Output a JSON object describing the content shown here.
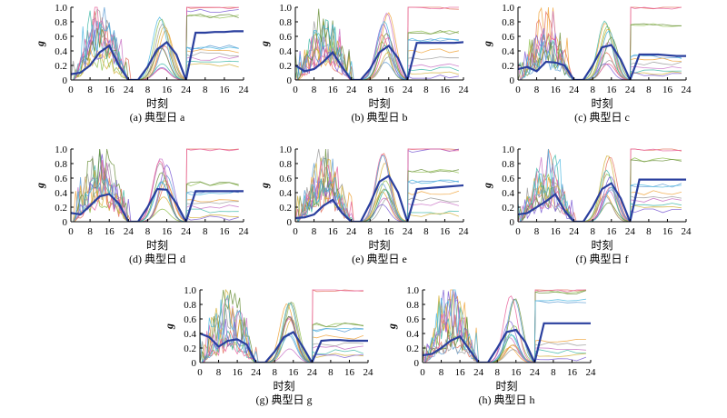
{
  "figure": {
    "xlabel": "时刻",
    "ylabel": "g",
    "x_ticks": [
      "0",
      "8",
      "16",
      "24",
      "8",
      "16",
      "24",
      "8",
      "16",
      "24"
    ],
    "y_ticks": [
      "0",
      "0.2",
      "0.4",
      "0.6",
      "0.8",
      "1.0"
    ]
  },
  "colors": {
    "mean_line": "#2a3f9e",
    "thin_lines": [
      "#e36d5b",
      "#8fbf4e",
      "#5a9bd4",
      "#f0a33a",
      "#9a9a9a",
      "#c870c4",
      "#3fb9a7",
      "#d4b23a",
      "#7a5bd4",
      "#e85f9a",
      "#6a8f3a",
      "#4bb7e0"
    ]
  },
  "chart_data": [
    {
      "type": "line",
      "caption": "(a) 典型日 a",
      "xlim": [
        0,
        72
      ],
      "ylim": [
        0,
        1.0
      ],
      "mean_series": {
        "x": [
          0,
          4,
          8,
          12,
          16,
          20,
          24,
          28,
          32,
          36,
          40,
          44,
          48,
          52,
          56,
          60,
          64,
          68,
          72
        ],
        "y": [
          0.08,
          0.1,
          0.2,
          0.38,
          0.47,
          0.2,
          0,
          0,
          0.18,
          0.42,
          0.52,
          0.35,
          0,
          0.65,
          0.65,
          0.66,
          0.66,
          0.67,
          0.67
        ]
      },
      "day3_levels": [
        1.0,
        0.88,
        0.45,
        0.4,
        0.35,
        0.3,
        0.25,
        0.2,
        0.95
      ]
    },
    {
      "type": "line",
      "caption": "(b) 典型日 b",
      "xlim": [
        0,
        72
      ],
      "ylim": [
        0,
        1.0
      ],
      "mean_series": {
        "x": [
          0,
          4,
          8,
          12,
          16,
          20,
          24,
          28,
          32,
          36,
          40,
          44,
          48,
          52,
          56,
          60,
          64,
          68,
          72
        ],
        "y": [
          0.2,
          0.12,
          0.15,
          0.25,
          0.38,
          0.18,
          0,
          0,
          0.15,
          0.38,
          0.47,
          0.3,
          0,
          0.51,
          0.51,
          0.51,
          0.51,
          0.51,
          0.52
        ]
      },
      "day3_levels": [
        1.0,
        0.65,
        0.55,
        0.4,
        0.3,
        0.2,
        0.15,
        0.1,
        0.05
      ]
    },
    {
      "type": "line",
      "caption": "(c) 典型日 c",
      "xlim": [
        0,
        72
      ],
      "ylim": [
        0,
        1.0
      ],
      "mean_series": {
        "x": [
          0,
          4,
          8,
          12,
          16,
          20,
          24,
          28,
          32,
          36,
          40,
          44,
          48,
          52,
          56,
          60,
          64,
          68,
          72
        ],
        "y": [
          0.15,
          0.18,
          0.12,
          0.25,
          0.24,
          0.2,
          0,
          0,
          0.2,
          0.45,
          0.48,
          0.28,
          0,
          0.35,
          0.35,
          0.35,
          0.34,
          0.33,
          0.33
        ]
      },
      "day3_levels": [
        1.0,
        0.76,
        0.32,
        0.28,
        0.22,
        0.18,
        0.12,
        0.1,
        0.08
      ]
    },
    {
      "type": "line",
      "caption": "(d) 典型日 d",
      "xlim": [
        0,
        72
      ],
      "ylim": [
        0,
        1.0
      ],
      "mean_series": {
        "x": [
          0,
          4,
          8,
          12,
          16,
          20,
          24,
          28,
          32,
          36,
          40,
          44,
          48,
          52,
          56,
          60,
          64,
          68,
          72
        ],
        "y": [
          0.12,
          0.1,
          0.22,
          0.35,
          0.38,
          0.25,
          0,
          0,
          0.2,
          0.45,
          0.44,
          0.25,
          0,
          0.42,
          0.42,
          0.42,
          0.42,
          0.42,
          0.42
        ]
      },
      "day3_levels": [
        1.0,
        0.52,
        0.4,
        0.3,
        0.25,
        0.2,
        0.15,
        0.08,
        0.05
      ]
    },
    {
      "type": "line",
      "caption": "(e) 典型日 e",
      "xlim": [
        0,
        72
      ],
      "ylim": [
        0,
        1.0
      ],
      "mean_series": {
        "x": [
          0,
          4,
          8,
          12,
          16,
          20,
          24,
          28,
          32,
          36,
          40,
          44,
          48,
          52,
          56,
          60,
          64,
          68,
          72
        ],
        "y": [
          0.05,
          0.06,
          0.1,
          0.22,
          0.3,
          0.12,
          0,
          0,
          0.25,
          0.55,
          0.63,
          0.4,
          0,
          0.45,
          0.46,
          0.47,
          0.48,
          0.49,
          0.5
        ]
      },
      "day3_levels": [
        1.0,
        0.7,
        0.55,
        0.4,
        0.3,
        0.25,
        0.12,
        0.1,
        0.98
      ]
    },
    {
      "type": "line",
      "caption": "(f) 典型日 f",
      "xlim": [
        0,
        72
      ],
      "ylim": [
        0,
        1.0
      ],
      "mean_series": {
        "x": [
          0,
          4,
          8,
          12,
          16,
          20,
          24,
          28,
          32,
          36,
          40,
          44,
          48,
          52,
          56,
          60,
          64,
          68,
          72
        ],
        "y": [
          0.1,
          0.12,
          0.2,
          0.28,
          0.38,
          0.15,
          0,
          0,
          0.2,
          0.45,
          0.53,
          0.32,
          0,
          0.58,
          0.58,
          0.58,
          0.58,
          0.58,
          0.58
        ]
      },
      "day3_levels": [
        1.0,
        0.85,
        0.5,
        0.4,
        0.35,
        0.3,
        0.25,
        0.2,
        0.15
      ]
    },
    {
      "type": "line",
      "caption": "(g) 典型日 g",
      "xlim": [
        0,
        72
      ],
      "ylim": [
        0,
        1.0
      ],
      "mean_series": {
        "x": [
          0,
          4,
          8,
          12,
          16,
          20,
          24,
          28,
          32,
          36,
          40,
          44,
          48,
          52,
          56,
          60,
          64,
          68,
          72
        ],
        "y": [
          0.4,
          0.35,
          0.22,
          0.3,
          0.32,
          0.25,
          0,
          0,
          0.15,
          0.35,
          0.42,
          0.22,
          0,
          0.3,
          0.31,
          0.31,
          0.3,
          0.3,
          0.3
        ]
      },
      "day3_levels": [
        1.0,
        0.52,
        0.45,
        0.35,
        0.25,
        0.2,
        0.15,
        0.1,
        0.08
      ]
    },
    {
      "type": "line",
      "caption": "(h) 典型日 h",
      "xlim": [
        0,
        72
      ],
      "ylim": [
        0,
        1.0
      ],
      "mean_series": {
        "x": [
          0,
          4,
          8,
          12,
          16,
          20,
          24,
          28,
          32,
          36,
          40,
          44,
          48,
          52,
          56,
          60,
          64,
          68,
          72
        ],
        "y": [
          0.1,
          0.12,
          0.2,
          0.3,
          0.36,
          0.18,
          0,
          0,
          0.2,
          0.42,
          0.45,
          0.28,
          0,
          0.54,
          0.54,
          0.54,
          0.54,
          0.54,
          0.54
        ]
      },
      "day3_levels": [
        1.0,
        0.97,
        0.85,
        0.3,
        0.25,
        0.2,
        0.15,
        0.1,
        0.05
      ]
    }
  ]
}
